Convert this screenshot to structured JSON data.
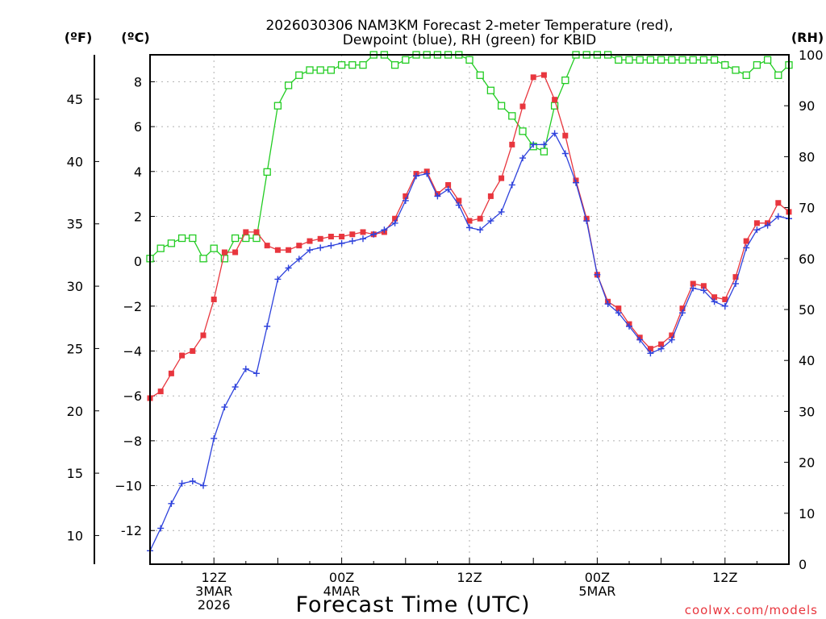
{
  "chart_data": {
    "type": "line",
    "title_line1": "2026030306 NAM3KM Forecast 2-meter Temperature (red),",
    "title_line2": "Dewpoint (blue), RH (green) for KBID",
    "left_unit_f": "(ºF)",
    "left_unit_c": "(ºC)",
    "right_unit": "(RH)",
    "xlabel": "Forecast Time (UTC)",
    "credit": "coolwx.com/models",
    "x_range_hours": [
      0,
      60
    ],
    "ylim_c": [
      -13.5,
      9.2
    ],
    "ylim_rh": [
      0,
      100
    ],
    "celsius_ticks": [
      "-12",
      "−10",
      "−8",
      "−6",
      "−4",
      "−2",
      "0",
      "2",
      "4",
      "6",
      "8"
    ],
    "celsius_values": [
      -12,
      -10,
      -8,
      -6,
      -4,
      -2,
      0,
      2,
      4,
      6,
      8
    ],
    "fahrenheit_ticks": [
      "10",
      "15",
      "20",
      "25",
      "30",
      "35",
      "40",
      "45"
    ],
    "fahrenheit_values": [
      10,
      15,
      20,
      25,
      30,
      35,
      40,
      45
    ],
    "rh_ticks": [
      "0",
      "10",
      "20",
      "30",
      "40",
      "50",
      "60",
      "70",
      "80",
      "90",
      "100"
    ],
    "rh_values": [
      0,
      10,
      20,
      30,
      40,
      50,
      60,
      70,
      80,
      90,
      100
    ],
    "x_tick_labels": [
      {
        "hour": 6,
        "lines": [
          "12Z",
          "3MAR",
          "2026"
        ]
      },
      {
        "hour": 18,
        "lines": [
          "00Z",
          "4MAR"
        ]
      },
      {
        "hour": 30,
        "lines": [
          "12Z"
        ]
      },
      {
        "hour": 42,
        "lines": [
          "00Z",
          "5MAR"
        ]
      },
      {
        "hour": 54,
        "lines": [
          "12Z"
        ]
      }
    ],
    "series": [
      {
        "name": "2-meter Temperature",
        "color": "#e8363e",
        "unit": "C",
        "values": [
          -6.1,
          -5.8,
          -5.0,
          -4.2,
          -4.0,
          -3.3,
          -1.7,
          0.4,
          0.4,
          1.3,
          1.3,
          0.7,
          0.5,
          0.5,
          0.7,
          0.9,
          1.0,
          1.1,
          1.1,
          1.2,
          1.3,
          1.2,
          1.3,
          1.9,
          2.9,
          3.9,
          4.0,
          3.0,
          3.4,
          2.7,
          1.8,
          1.9,
          2.9,
          3.7,
          5.2,
          6.9,
          8.2,
          8.3,
          7.2,
          5.6,
          3.6,
          1.9,
          -0.6,
          -1.8,
          -2.1,
          -2.8,
          -3.4,
          -3.9,
          -3.7,
          -3.3,
          -2.1,
          -1.0,
          -1.1,
          -1.6,
          -1.7,
          -0.7,
          0.9,
          1.7,
          1.7,
          2.6,
          2.2
        ]
      },
      {
        "name": "Dewpoint",
        "color": "#2e42dc",
        "unit": "C",
        "values": [
          -12.9,
          -11.9,
          -10.8,
          -9.9,
          -9.8,
          -10.0,
          -7.9,
          -6.5,
          -5.6,
          -4.8,
          -5.0,
          -2.9,
          -0.8,
          -0.3,
          0.1,
          0.5,
          0.6,
          0.7,
          0.8,
          0.9,
          1.0,
          1.2,
          1.4,
          1.7,
          2.7,
          3.8,
          3.9,
          2.9,
          3.2,
          2.5,
          1.5,
          1.4,
          1.8,
          2.2,
          3.4,
          4.6,
          5.2,
          5.2,
          5.7,
          4.8,
          3.5,
          1.8,
          -0.6,
          -1.9,
          -2.3,
          -2.9,
          -3.5,
          -4.1,
          -3.9,
          -3.5,
          -2.3,
          -1.2,
          -1.3,
          -1.8,
          -2.0,
          -1.0,
          0.6,
          1.4,
          1.6,
          2.0,
          1.9
        ]
      },
      {
        "name": "Relative Humidity",
        "color": "#22cc22",
        "unit": "%",
        "values": [
          60,
          62,
          63,
          64,
          64,
          60,
          62,
          60,
          64,
          64,
          64,
          77,
          90,
          94,
          96,
          97,
          97,
          97,
          98,
          98,
          98,
          100,
          100,
          98,
          99,
          100,
          100,
          100,
          100,
          100,
          99,
          96,
          93,
          90,
          88,
          85,
          82,
          81,
          90,
          95,
          100,
          100,
          100,
          100,
          99,
          99,
          99,
          99,
          99,
          99,
          99,
          99,
          99,
          99,
          98,
          97,
          96,
          98,
          99,
          96,
          98
        ]
      }
    ]
  }
}
